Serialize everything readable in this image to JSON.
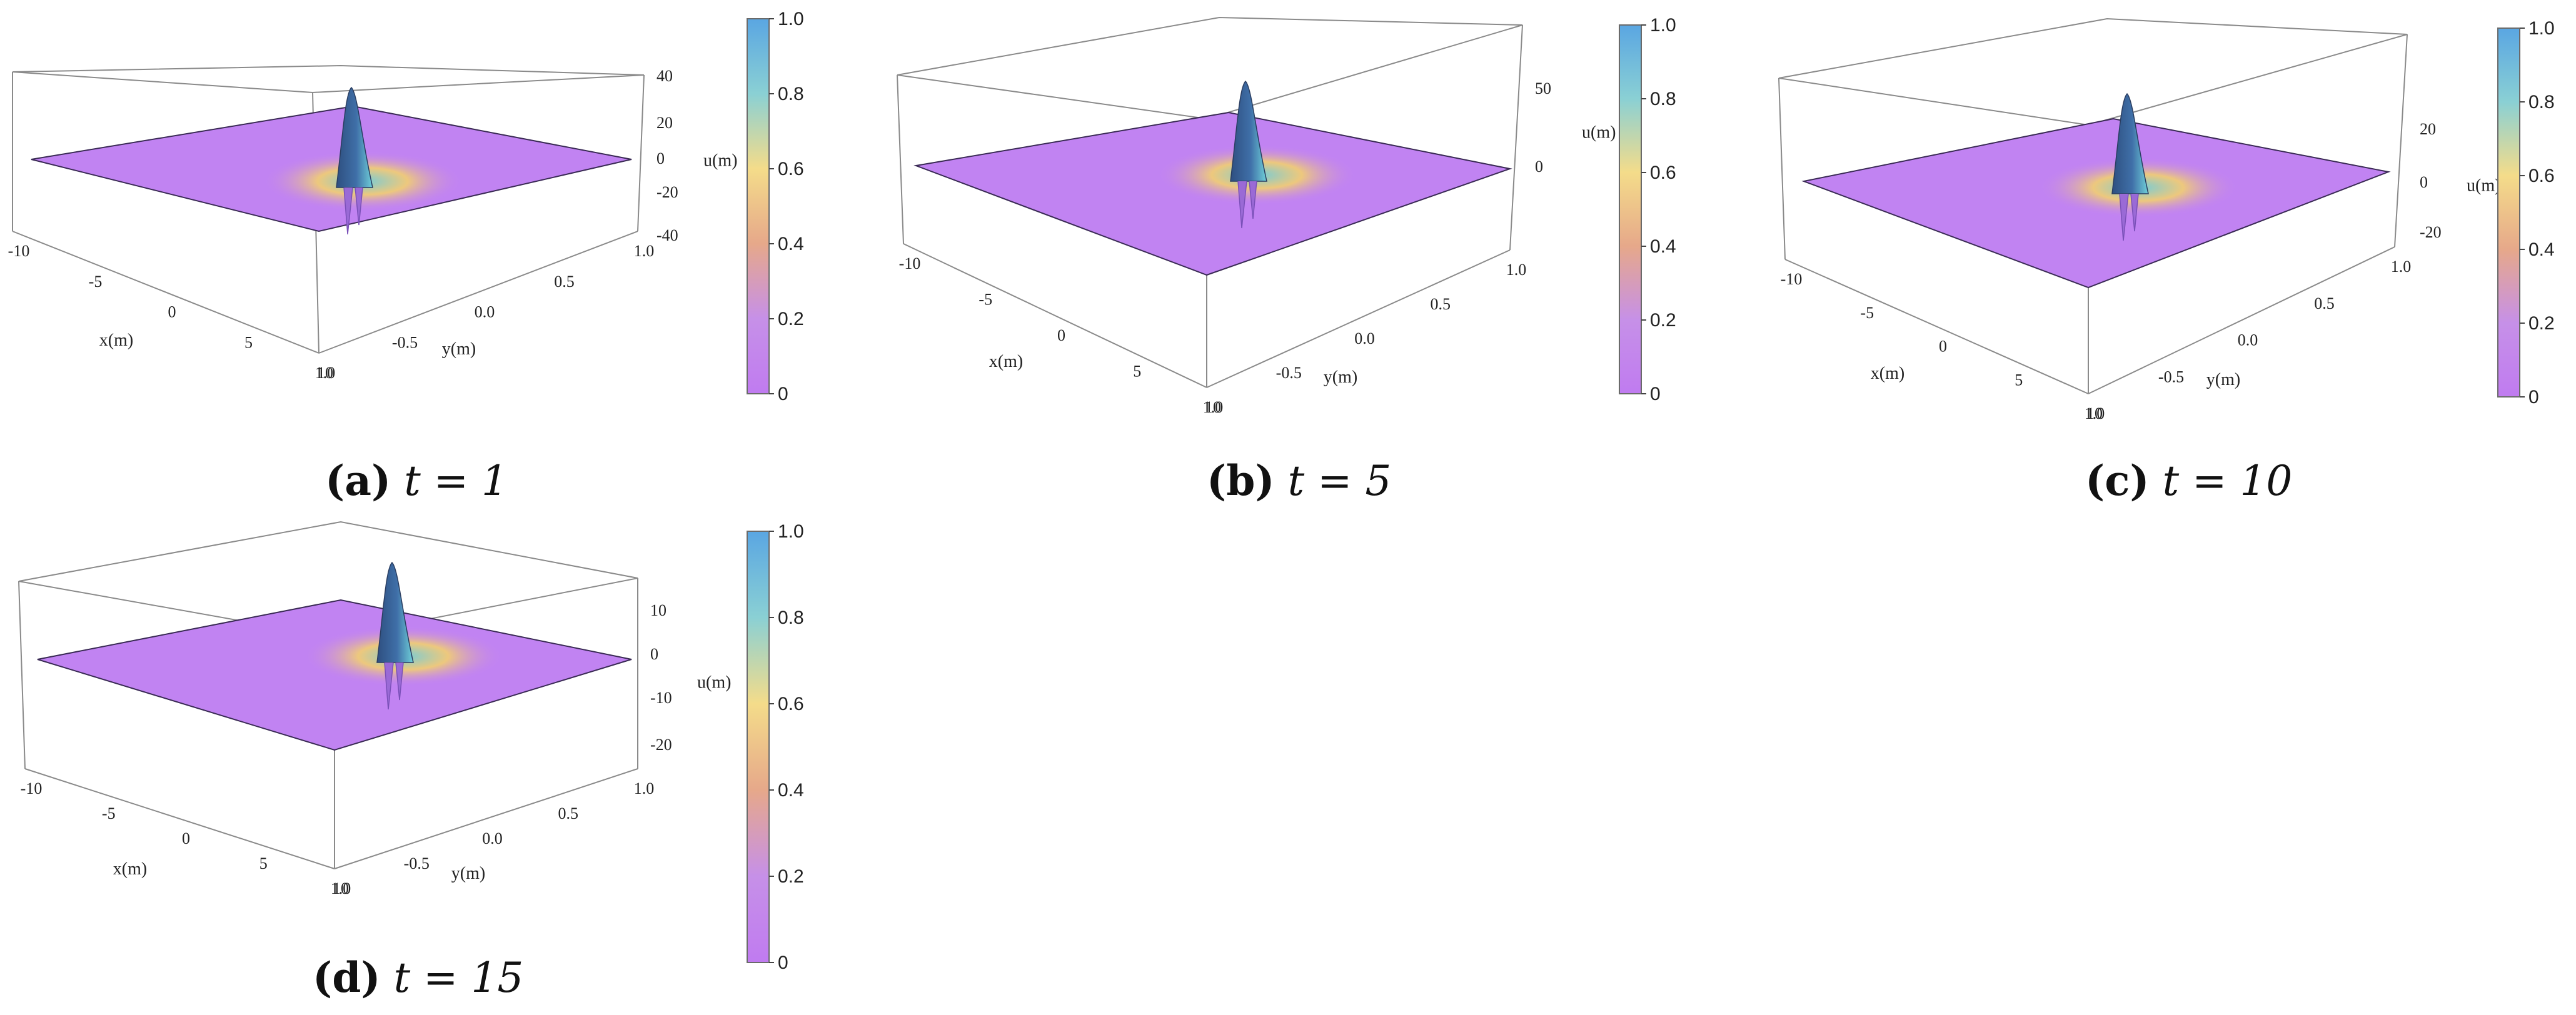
{
  "colorbar": {
    "ticks": [
      "1.0",
      "0.8",
      "0.6",
      "0.4",
      "0.2",
      "0"
    ],
    "colors": [
      "#5aa6e2",
      "#8ad0d4",
      "#f4dc8a",
      "#e6a88a",
      "#c690e8",
      "#c07bf0"
    ]
  },
  "surface_colors": {
    "base": "#c183f2",
    "peak": "#3f6fa8",
    "ring": "#f2d070",
    "glow": "#6fd0d8"
  },
  "panels": [
    {
      "label": "(a)",
      "time_expr": "t = 1",
      "x_ticks": [
        "-10",
        "-5",
        "0",
        "5",
        "10"
      ],
      "y_ticks": [
        "1.0",
        "0.5",
        "0.0",
        "-0.5",
        "1.0"
      ],
      "z_ticks": [
        "40",
        "20",
        "0",
        "-20",
        "-40"
      ],
      "xlabel": "x(m)",
      "ylabel": "y(m)",
      "zlabel": "u(m)"
    },
    {
      "label": "(b)",
      "time_expr": "t = 5",
      "x_ticks": [
        "-10",
        "-5",
        "0",
        "5",
        "10"
      ],
      "y_ticks": [
        "1.0",
        "0.5",
        "0.0",
        "-0.5",
        "1.0"
      ],
      "z_ticks": [
        "50",
        "0"
      ],
      "xlabel": "x(m)",
      "ylabel": "y(m)",
      "zlabel": "u(m)"
    },
    {
      "label": "(c)",
      "time_expr": "t = 10",
      "x_ticks": [
        "-10",
        "-5",
        "0",
        "5",
        "10"
      ],
      "y_ticks": [
        "1.0",
        "0.5",
        "0.0",
        "-0.5",
        "1.0"
      ],
      "z_ticks": [
        "20",
        "0",
        "-20"
      ],
      "xlabel": "x(m)",
      "ylabel": "y(m)",
      "zlabel": "u(m)"
    },
    {
      "label": "(d)",
      "time_expr": "t = 15",
      "x_ticks": [
        "-10",
        "-5",
        "0",
        "5",
        "10"
      ],
      "y_ticks": [
        "1.0",
        "0.5",
        "0.0",
        "-0.5",
        "1.0"
      ],
      "z_ticks": [
        "10",
        "0",
        "-10",
        "-20"
      ],
      "xlabel": "x(m)",
      "ylabel": "y(m)",
      "zlabel": "u(m)"
    }
  ]
}
